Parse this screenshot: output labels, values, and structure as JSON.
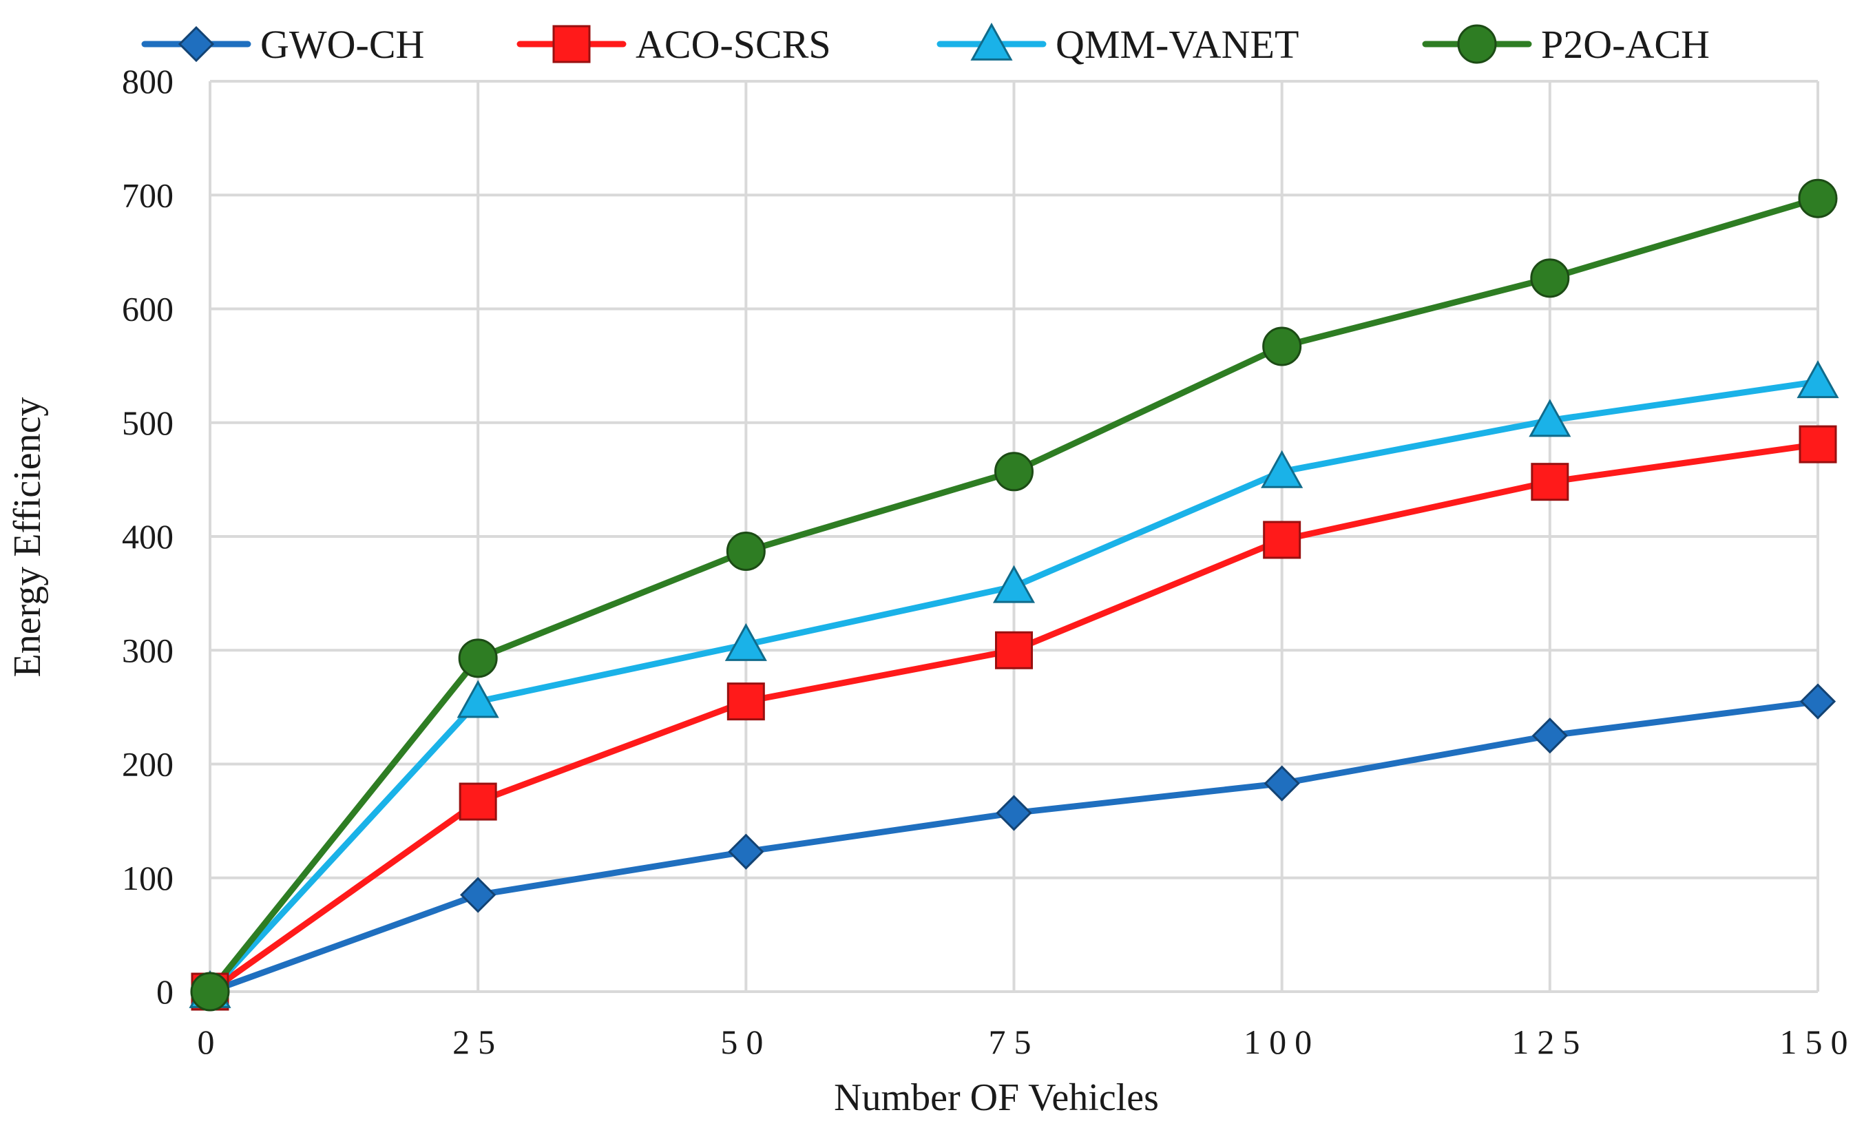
{
  "chart_data": {
    "type": "line",
    "title": "",
    "xlabel": "Number OF Vehicles",
    "ylabel": "Energy Efficiency",
    "x": [
      0,
      25,
      50,
      75,
      100,
      125,
      150
    ],
    "x_tick_labels": [
      "0",
      "25",
      "50",
      "75",
      "100",
      "125",
      "150"
    ],
    "ylim": [
      0,
      800
    ],
    "y_ticks": [
      0,
      100,
      200,
      300,
      400,
      500,
      600,
      700,
      800
    ],
    "grid": true,
    "legend_position": "top",
    "series": [
      {
        "name": "GWO-CH",
        "color": "#1f6fbf",
        "marker": "diamond",
        "values": [
          0,
          85,
          123,
          157,
          183,
          225,
          255
        ]
      },
      {
        "name": "ACO-SCRS",
        "color": "#ff1a1a",
        "marker": "square",
        "values": [
          0,
          167,
          255,
          300,
          397,
          448,
          481
        ]
      },
      {
        "name": "QMM-VANET",
        "color": "#1ab2e8",
        "marker": "triangle",
        "values": [
          0,
          255,
          305,
          356,
          457,
          502,
          536
        ]
      },
      {
        "name": "P2O-ACH",
        "color": "#2e7d23",
        "marker": "circle",
        "values": [
          0,
          293,
          387,
          457,
          567,
          627,
          697
        ]
      }
    ]
  }
}
